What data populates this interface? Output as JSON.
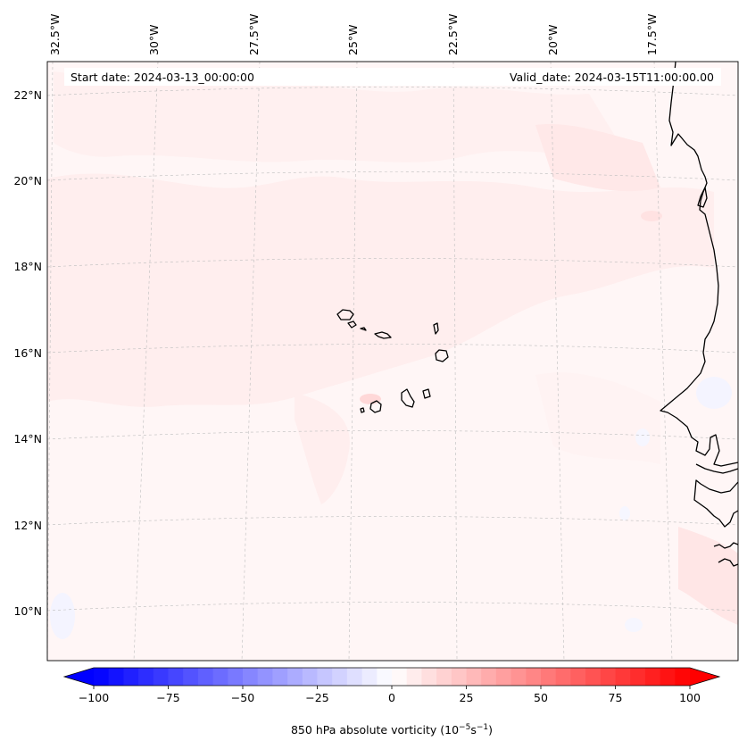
{
  "header": {
    "start_date": "Start date: 2024-03-13_00:00:00",
    "valid_date": "Valid_date: 2024-03-15T11:00:00.00"
  },
  "map": {
    "lon_labels": [
      "32.5°W",
      "30°W",
      "27.5°W",
      "25°W",
      "22.5°W",
      "20°W",
      "17.5°W"
    ],
    "lat_labels": [
      "22°N",
      "20°N",
      "18°N",
      "16°N",
      "14°N",
      "12°N",
      "10°N"
    ],
    "field": "850 hPa absolute vorticity",
    "coastline_color": "#000000",
    "gridline_color": "#bdbdbd"
  },
  "colorbar": {
    "label_main": "850 hPa absolute vorticity (10",
    "label_exp1": "−5",
    "label_mid": "s",
    "label_exp2": "−1",
    "label_end": ")",
    "ticks": [
      "−100",
      "−75",
      "−50",
      "−25",
      "0",
      "25",
      "50",
      "75",
      "100"
    ],
    "vmin": -100,
    "vmax": 100,
    "levels": 41,
    "colormap": "bwr",
    "low_color": "#0000ff",
    "mid_color": "#ffffff",
    "high_color": "#ff0000"
  }
}
